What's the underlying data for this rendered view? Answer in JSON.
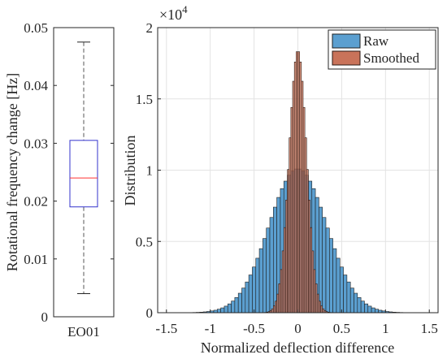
{
  "colors": {
    "raw_fill": "#5B9FD0",
    "raw_stroke": "#1f1f1f",
    "smoothed_fill": "#C9735A",
    "smoothed_stroke": "#2a1a14",
    "grid": "#e3e3e3",
    "box": "#3333cc",
    "median": "#ff3333",
    "whisker": "#555555"
  },
  "chart_data": [
    {
      "type": "box",
      "category": "EO01",
      "ylabel": "Rotational frequency change [Hz]",
      "ylim": [
        0,
        0.05
      ],
      "yticks": [
        0,
        0.01,
        0.02,
        0.03,
        0.04,
        0.05
      ],
      "ytick_labels": [
        "0",
        "0.01",
        "0.02",
        "0.03",
        "0.04",
        "0.05"
      ],
      "whisker_low": 0.004,
      "q1": 0.019,
      "median": 0.024,
      "q3": 0.0305,
      "whisker_high": 0.0475,
      "grid": false
    },
    {
      "type": "histogram",
      "xlabel": "Normalized deflection difference",
      "ylabel": "Distribution",
      "multiplier_label": "×10",
      "multiplier_exponent": "4",
      "xlim": [
        -1.6,
        1.6
      ],
      "ylim": [
        0,
        20000
      ],
      "xticks": [
        -1.5,
        -1,
        -0.5,
        0,
        0.5,
        1,
        1.5
      ],
      "xtick_labels": [
        "-1.5",
        "-1",
        "-0.5",
        "0",
        "0.5",
        "1",
        "1.5"
      ],
      "yticks": [
        0,
        5000,
        10000,
        15000,
        20000
      ],
      "ytick_labels": [
        "0",
        "0.5",
        "1",
        "1.5",
        "2"
      ],
      "grid": true,
      "legend_position": "top-right",
      "series": [
        {
          "name": "Raw",
          "bin_width": 0.04,
          "peak": 10100,
          "sigma": 0.33,
          "peak_x": 0.0
        },
        {
          "name": "Smoothed",
          "bin_width": 0.02,
          "peak": 18400,
          "sigma": 0.1,
          "peak_x": 0.0
        }
      ]
    }
  ]
}
